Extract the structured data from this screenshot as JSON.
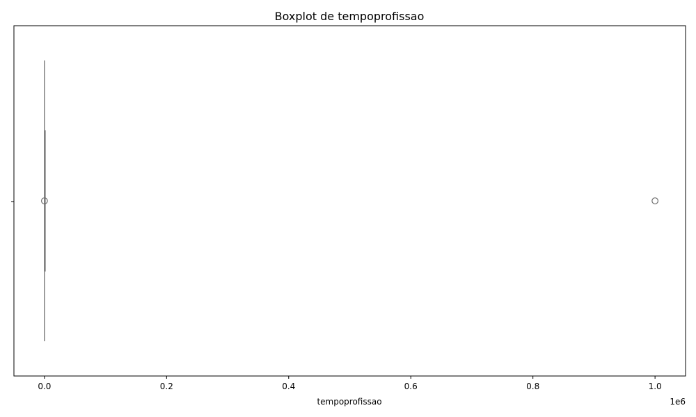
{
  "chart_data": {
    "type": "boxplot",
    "title": "Boxplot de tempoprofissao",
    "xlabel": "tempoprofissao",
    "ylabel": "",
    "xlim": [
      -50000,
      1050000
    ],
    "x_ticks": [
      0,
      200000,
      400000,
      600000,
      800000,
      1000000
    ],
    "x_tick_labels": [
      "0.0",
      "0.2",
      "0.4",
      "0.6",
      "0.8",
      "1.0"
    ],
    "x_offset_label": "1e6",
    "orientation": "horizontal",
    "box": {
      "whisker_low": 0,
      "q1": 0,
      "median": 0,
      "q3": 0,
      "whisker_high": 0
    },
    "outliers": [
      0,
      1000000
    ],
    "colors": {
      "box": "#808080",
      "outlier_edge": "#6e6e6e",
      "axis": "#000000"
    }
  }
}
